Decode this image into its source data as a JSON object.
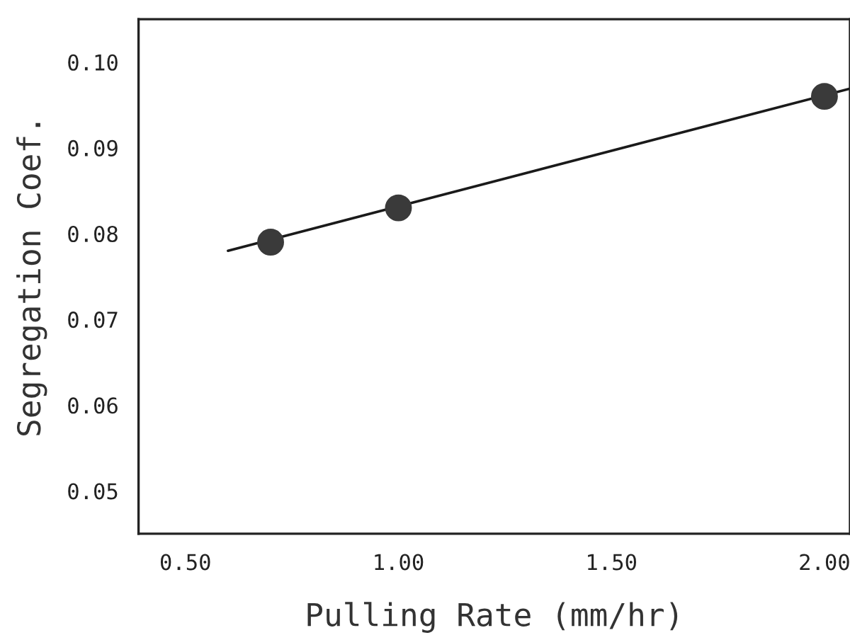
{
  "chart_data": {
    "type": "scatter",
    "xlabel": "Pulling Rate (mm/hr)",
    "ylabel": "Segregation Coef.",
    "xlim": [
      0.39,
      2.06
    ],
    "ylim": [
      0.045,
      0.105
    ],
    "xticks": [
      {
        "value": 0.5,
        "label": "0.50"
      },
      {
        "value": 1.0,
        "label": "1.00"
      },
      {
        "value": 1.5,
        "label": "1.50"
      },
      {
        "value": 2.0,
        "label": "2.00"
      }
    ],
    "yticks": [
      {
        "value": 0.05,
        "label": "0.05"
      },
      {
        "value": 0.06,
        "label": "0.06"
      },
      {
        "value": 0.07,
        "label": "0.07"
      },
      {
        "value": 0.08,
        "label": "0.08"
      },
      {
        "value": 0.09,
        "label": "0.09"
      },
      {
        "value": 0.1,
        "label": "0.10"
      }
    ],
    "grid": false,
    "legend": false,
    "series": [
      {
        "marker": "circle",
        "color": "#3a3a3a",
        "x": [
          0.7,
          1.0,
          2.0
        ],
        "values": [
          0.079,
          0.083,
          0.096
        ]
      },
      {
        "type": "line",
        "marker": "none",
        "color": "#1a1a1a",
        "x": [
          0.6,
          2.06
        ],
        "values": [
          0.078,
          0.0969
        ]
      }
    ]
  }
}
